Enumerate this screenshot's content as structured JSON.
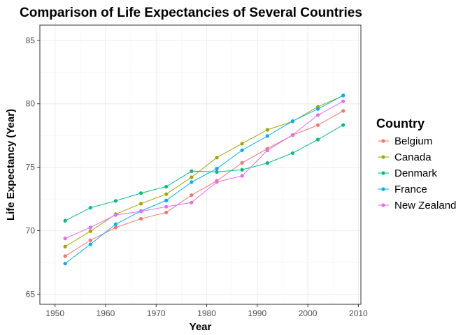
{
  "chart_data": {
    "type": "line",
    "title": "Comparison of Life Expectancies of Several Countries",
    "xlabel": "Year",
    "ylabel": "Life Expectancy (Year)",
    "xlim": [
      1947,
      2010.5
    ],
    "ylim": [
      64.2,
      86.2
    ],
    "x_ticks": [
      1950,
      1960,
      1970,
      1980,
      1990,
      2000,
      2010
    ],
    "y_ticks": [
      65,
      70,
      75,
      80,
      85
    ],
    "grid": true,
    "legend": {
      "title": "Country",
      "position": "right"
    },
    "x": [
      1952,
      1957,
      1962,
      1967,
      1972,
      1977,
      1982,
      1987,
      1992,
      1997,
      2002,
      2007
    ],
    "series": [
      {
        "name": "Belgium",
        "color": "#F8766D",
        "values": [
          68.0,
          69.24,
          70.25,
          70.94,
          71.44,
          72.8,
          73.93,
          75.35,
          76.46,
          77.53,
          78.32,
          79.44
        ]
      },
      {
        "name": "Canada",
        "color": "#A3A500",
        "values": [
          68.75,
          69.96,
          71.3,
          72.13,
          72.88,
          74.21,
          75.76,
          76.86,
          77.95,
          78.61,
          79.77,
          80.65
        ]
      },
      {
        "name": "Denmark",
        "color": "#00BF7D",
        "values": [
          70.78,
          71.81,
          72.35,
          72.96,
          73.47,
          74.69,
          74.63,
          74.8,
          75.33,
          76.11,
          77.18,
          78.33
        ]
      },
      {
        "name": "France",
        "color": "#00B0F6",
        "values": [
          67.41,
          68.93,
          70.51,
          71.55,
          72.38,
          73.83,
          74.89,
          76.34,
          77.46,
          78.64,
          79.59,
          80.66
        ]
      },
      {
        "name": "New Zealand",
        "color": "#E76BF3",
        "values": [
          69.39,
          70.26,
          71.24,
          71.52,
          71.89,
          72.22,
          73.84,
          74.32,
          76.33,
          77.55,
          79.11,
          80.2
        ]
      }
    ]
  }
}
